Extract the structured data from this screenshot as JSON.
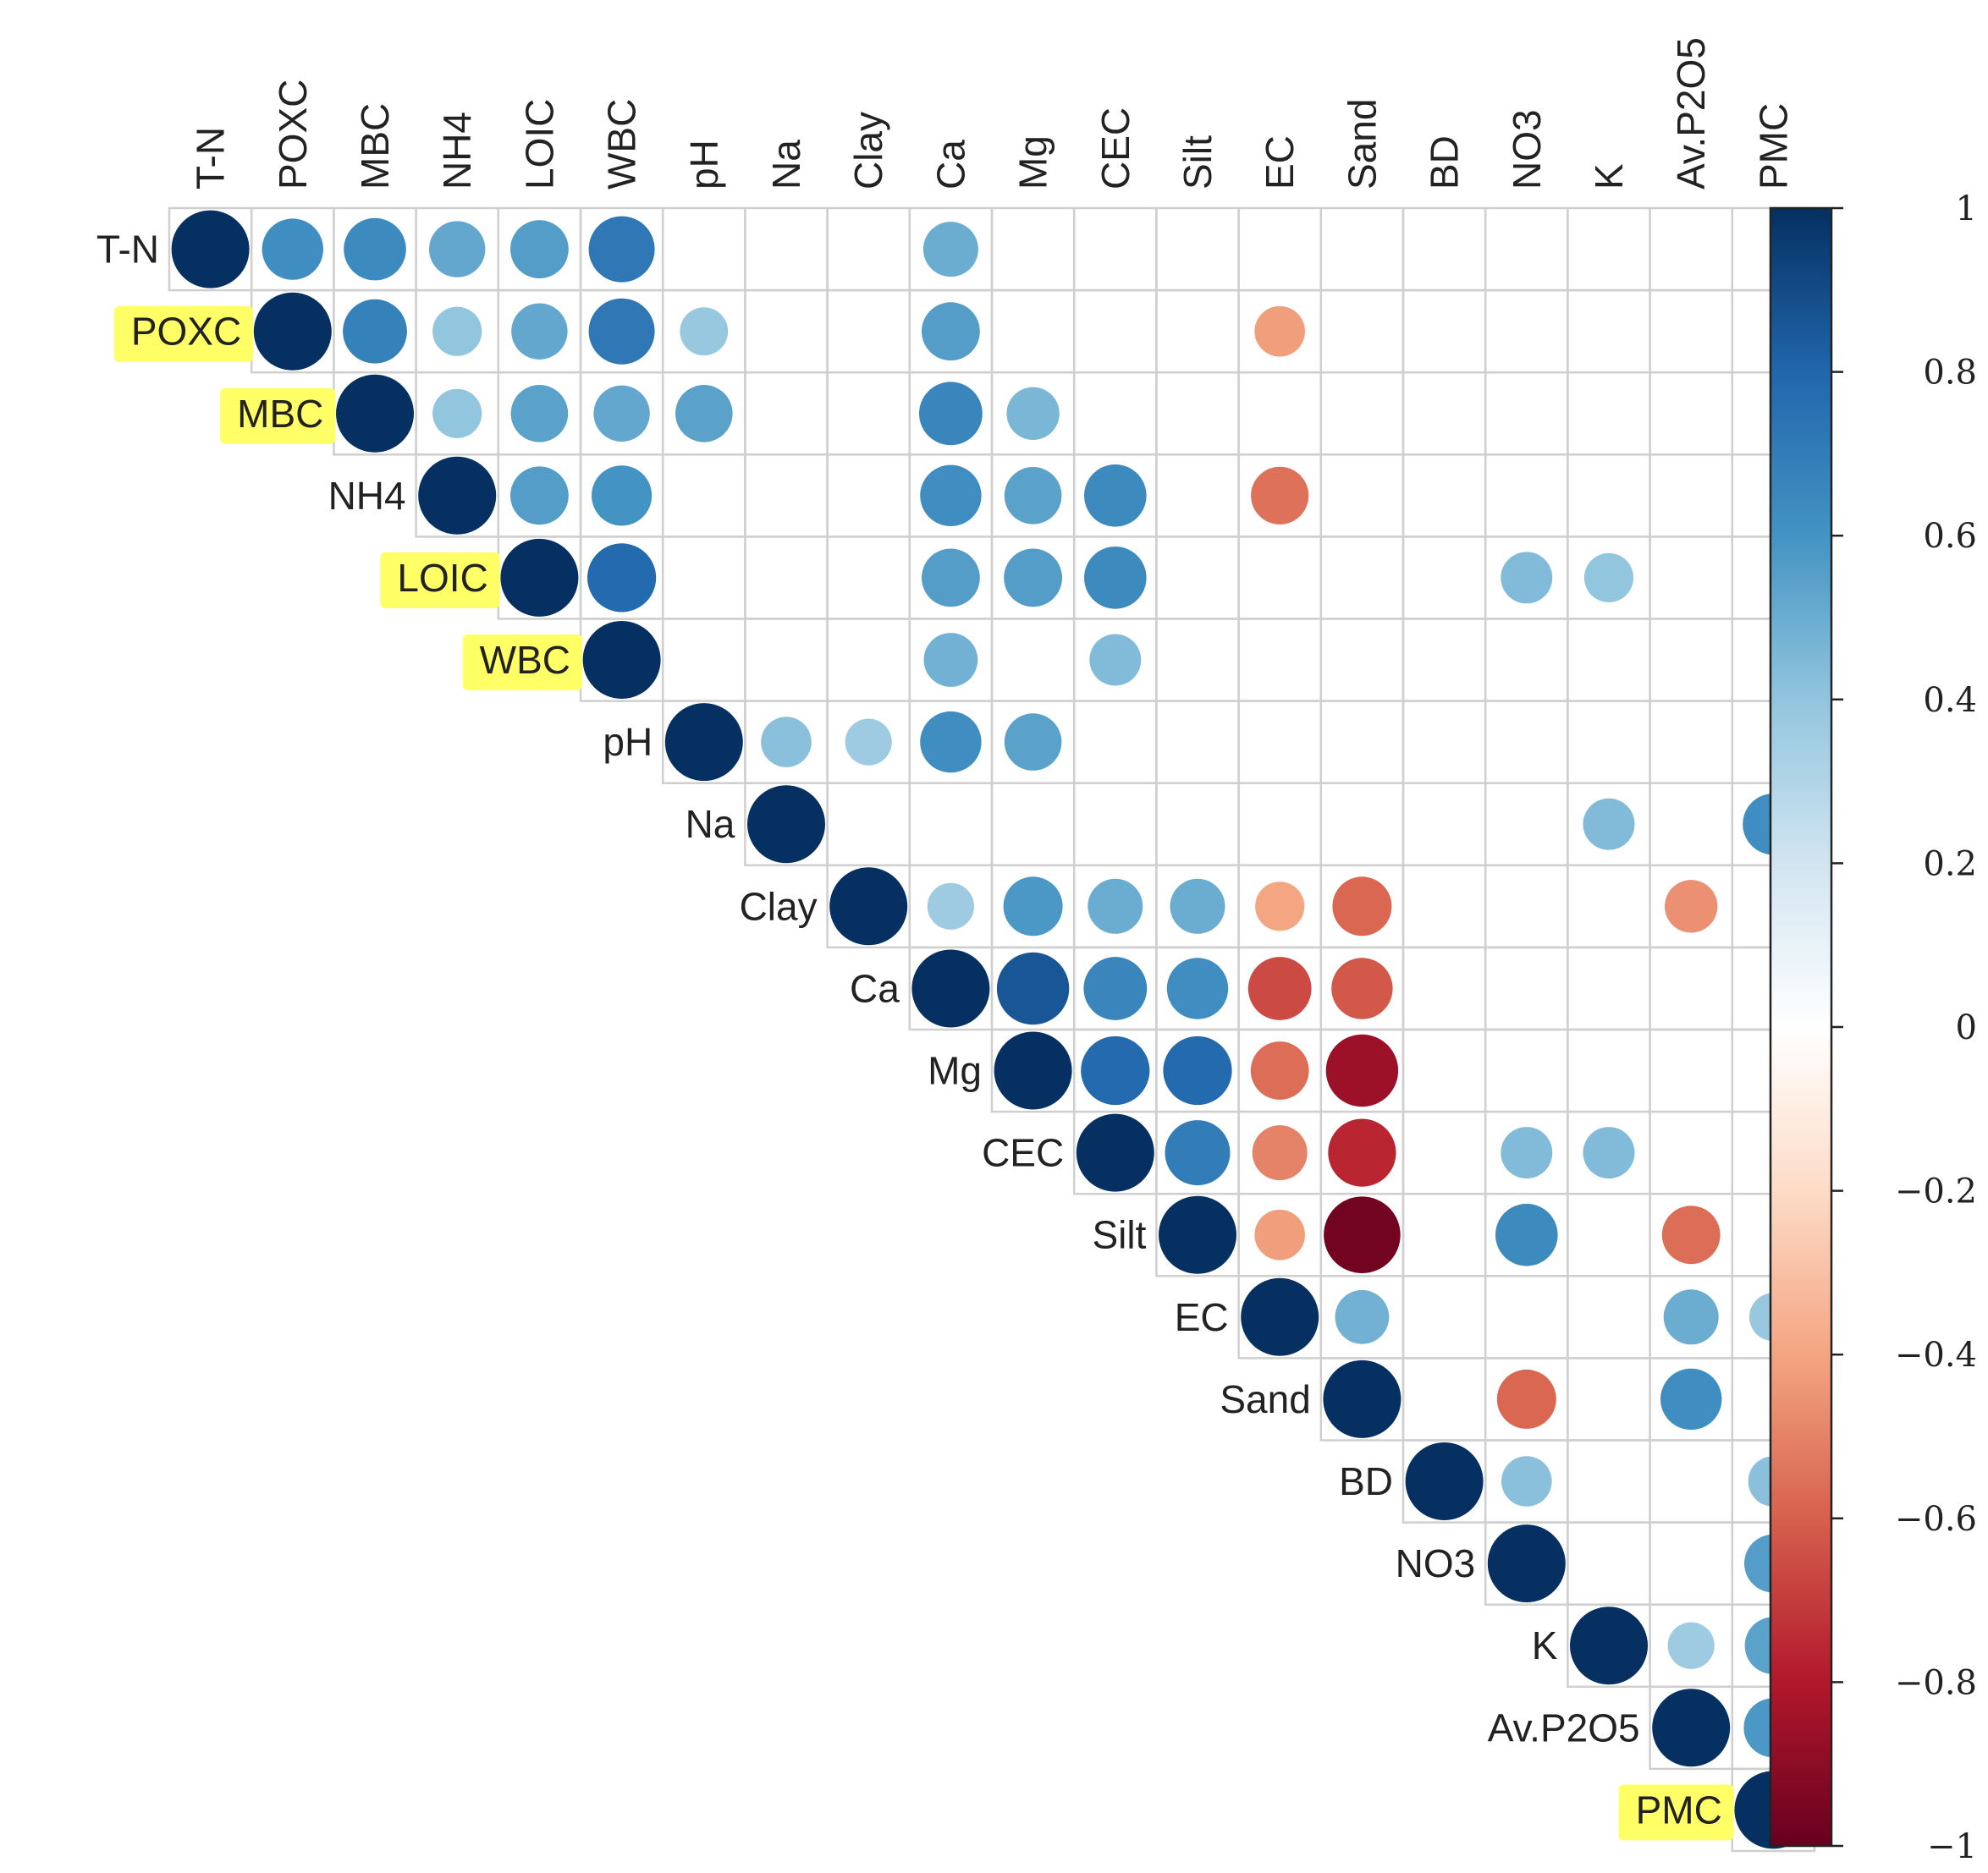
{
  "chart_data": {
    "type": "heatmap",
    "subtype": "correlation-matrix-upper-triangle-circles",
    "variables": [
      "T-N",
      "POXC",
      "MBC",
      "NH4",
      "LOIC",
      "WBC",
      "pH",
      "Na",
      "Clay",
      "Ca",
      "Mg",
      "CEC",
      "Silt",
      "EC",
      "Sand",
      "BD",
      "NO3",
      "K",
      "Av.P2O5",
      "PMC"
    ],
    "highlighted_labels": [
      "POXC",
      "MBC",
      "LOIC",
      "WBC",
      "PMC"
    ],
    "highlight_color": "#ffff66",
    "correlations": [
      {
        "row": "T-N",
        "col": "T-N",
        "r": 1.0
      },
      {
        "row": "T-N",
        "col": "POXC",
        "r": 0.62
      },
      {
        "row": "T-N",
        "col": "MBC",
        "r": 0.64
      },
      {
        "row": "T-N",
        "col": "NH4",
        "r": 0.52
      },
      {
        "row": "T-N",
        "col": "LOIC",
        "r": 0.56
      },
      {
        "row": "T-N",
        "col": "WBC",
        "r": 0.72
      },
      {
        "row": "T-N",
        "col": "Ca",
        "r": 0.5
      },
      {
        "row": "POXC",
        "col": "POXC",
        "r": 1.0
      },
      {
        "row": "POXC",
        "col": "MBC",
        "r": 0.68
      },
      {
        "row": "POXC",
        "col": "NH4",
        "r": 0.4
      },
      {
        "row": "POXC",
        "col": "LOIC",
        "r": 0.52
      },
      {
        "row": "POXC",
        "col": "WBC",
        "r": 0.72
      },
      {
        "row": "POXC",
        "col": "pH",
        "r": 0.38
      },
      {
        "row": "POXC",
        "col": "Ca",
        "r": 0.56
      },
      {
        "row": "POXC",
        "col": "EC",
        "r": -0.42
      },
      {
        "row": "MBC",
        "col": "MBC",
        "r": 1.0
      },
      {
        "row": "MBC",
        "col": "NH4",
        "r": 0.4
      },
      {
        "row": "MBC",
        "col": "LOIC",
        "r": 0.54
      },
      {
        "row": "MBC",
        "col": "WBC",
        "r": 0.52
      },
      {
        "row": "MBC",
        "col": "pH",
        "r": 0.54
      },
      {
        "row": "MBC",
        "col": "Ca",
        "r": 0.66
      },
      {
        "row": "MBC",
        "col": "Mg",
        "r": 0.46
      },
      {
        "row": "NH4",
        "col": "NH4",
        "r": 1.0
      },
      {
        "row": "NH4",
        "col": "LOIC",
        "r": 0.56
      },
      {
        "row": "NH4",
        "col": "WBC",
        "r": 0.6
      },
      {
        "row": "NH4",
        "col": "Ca",
        "r": 0.62
      },
      {
        "row": "NH4",
        "col": "Mg",
        "r": 0.54
      },
      {
        "row": "NH4",
        "col": "CEC",
        "r": 0.64
      },
      {
        "row": "NH4",
        "col": "EC",
        "r": -0.55
      },
      {
        "row": "LOIC",
        "col": "LOIC",
        "r": 1.0
      },
      {
        "row": "LOIC",
        "col": "WBC",
        "r": 0.78
      },
      {
        "row": "LOIC",
        "col": "Ca",
        "r": 0.56
      },
      {
        "row": "LOIC",
        "col": "Mg",
        "r": 0.56
      },
      {
        "row": "LOIC",
        "col": "CEC",
        "r": 0.64
      },
      {
        "row": "LOIC",
        "col": "NO3",
        "r": 0.44
      },
      {
        "row": "LOIC",
        "col": "K",
        "r": 0.4
      },
      {
        "row": "WBC",
        "col": "WBC",
        "r": 1.0
      },
      {
        "row": "WBC",
        "col": "Ca",
        "r": 0.48
      },
      {
        "row": "WBC",
        "col": "CEC",
        "r": 0.44
      },
      {
        "row": "pH",
        "col": "pH",
        "r": 1.0
      },
      {
        "row": "pH",
        "col": "Na",
        "r": 0.42
      },
      {
        "row": "pH",
        "col": "Clay",
        "r": 0.36
      },
      {
        "row": "pH",
        "col": "Ca",
        "r": 0.62
      },
      {
        "row": "pH",
        "col": "Mg",
        "r": 0.54
      },
      {
        "row": "Na",
        "col": "Na",
        "r": 1.0
      },
      {
        "row": "Na",
        "col": "K",
        "r": 0.44
      },
      {
        "row": "Na",
        "col": "PMC",
        "r": 0.62
      },
      {
        "row": "Clay",
        "col": "Clay",
        "r": 1.0
      },
      {
        "row": "Clay",
        "col": "Ca",
        "r": 0.36
      },
      {
        "row": "Clay",
        "col": "Mg",
        "r": 0.58
      },
      {
        "row": "Clay",
        "col": "CEC",
        "r": 0.5
      },
      {
        "row": "Clay",
        "col": "Silt",
        "r": 0.5
      },
      {
        "row": "Clay",
        "col": "EC",
        "r": -0.4
      },
      {
        "row": "Clay",
        "col": "Sand",
        "r": -0.58
      },
      {
        "row": "Clay",
        "col": "Av.P2O5",
        "r": -0.46
      },
      {
        "row": "Ca",
        "col": "Ca",
        "r": 1.0
      },
      {
        "row": "Ca",
        "col": "Mg",
        "r": 0.86
      },
      {
        "row": "Ca",
        "col": "CEC",
        "r": 0.66
      },
      {
        "row": "Ca",
        "col": "Silt",
        "r": 0.62
      },
      {
        "row": "Ca",
        "col": "EC",
        "r": -0.66
      },
      {
        "row": "Ca",
        "col": "Sand",
        "r": -0.62
      },
      {
        "row": "Mg",
        "col": "Mg",
        "r": 1.0
      },
      {
        "row": "Mg",
        "col": "CEC",
        "r": 0.78
      },
      {
        "row": "Mg",
        "col": "Silt",
        "r": 0.78
      },
      {
        "row": "Mg",
        "col": "EC",
        "r": -0.56
      },
      {
        "row": "Mg",
        "col": "Sand",
        "r": -0.86
      },
      {
        "row": "CEC",
        "col": "CEC",
        "r": 1.0
      },
      {
        "row": "CEC",
        "col": "Silt",
        "r": 0.7
      },
      {
        "row": "CEC",
        "col": "EC",
        "r": -0.5
      },
      {
        "row": "CEC",
        "col": "Sand",
        "r": -0.76
      },
      {
        "row": "CEC",
        "col": "NO3",
        "r": 0.44
      },
      {
        "row": "CEC",
        "col": "K",
        "r": 0.44
      },
      {
        "row": "Silt",
        "col": "Silt",
        "r": 1.0
      },
      {
        "row": "Silt",
        "col": "EC",
        "r": -0.42
      },
      {
        "row": "Silt",
        "col": "Sand",
        "r": -0.97
      },
      {
        "row": "Silt",
        "col": "NO3",
        "r": 0.64
      },
      {
        "row": "Silt",
        "col": "Av.P2O5",
        "r": -0.56
      },
      {
        "row": "EC",
        "col": "EC",
        "r": 1.0
      },
      {
        "row": "EC",
        "col": "Sand",
        "r": 0.48
      },
      {
        "row": "EC",
        "col": "Av.P2O5",
        "r": 0.5
      },
      {
        "row": "EC",
        "col": "PMC",
        "r": 0.38
      },
      {
        "row": "Sand",
        "col": "Sand",
        "r": 1.0
      },
      {
        "row": "Sand",
        "col": "NO3",
        "r": -0.58
      },
      {
        "row": "Sand",
        "col": "Av.P2O5",
        "r": 0.62
      },
      {
        "row": "BD",
        "col": "BD",
        "r": 1.0
      },
      {
        "row": "BD",
        "col": "NO3",
        "r": 0.42
      },
      {
        "row": "BD",
        "col": "PMC",
        "r": 0.42
      },
      {
        "row": "NO3",
        "col": "NO3",
        "r": 1.0
      },
      {
        "row": "NO3",
        "col": "PMC",
        "r": 0.56
      },
      {
        "row": "K",
        "col": "K",
        "r": 1.0
      },
      {
        "row": "K",
        "col": "Av.P2O5",
        "r": 0.36
      },
      {
        "row": "K",
        "col": "PMC",
        "r": 0.54
      },
      {
        "row": "Av.P2O5",
        "col": "Av.P2O5",
        "r": 1.0
      },
      {
        "row": "Av.P2O5",
        "col": "PMC",
        "r": 0.58
      },
      {
        "row": "PMC",
        "col": "PMC",
        "r": 1.0
      }
    ],
    "colorbar": {
      "ticks": [
        1,
        0.8,
        0.6,
        0.4,
        0.2,
        0,
        -0.2,
        -0.4,
        -0.6,
        -0.8,
        -1
      ],
      "tick_labels": [
        "1",
        "0.8",
        "0.6",
        "0.4",
        "0.2",
        "0",
        "−0.2",
        "−0.4",
        "−0.6",
        "−0.8",
        "−1"
      ],
      "range": [
        -1,
        1
      ]
    },
    "palette": [
      "#67001f",
      "#b2182b",
      "#d6604d",
      "#f4a582",
      "#fddbc7",
      "#ffffff",
      "#d1e5f0",
      "#92c5de",
      "#4393c3",
      "#2166ac",
      "#053061"
    ]
  }
}
